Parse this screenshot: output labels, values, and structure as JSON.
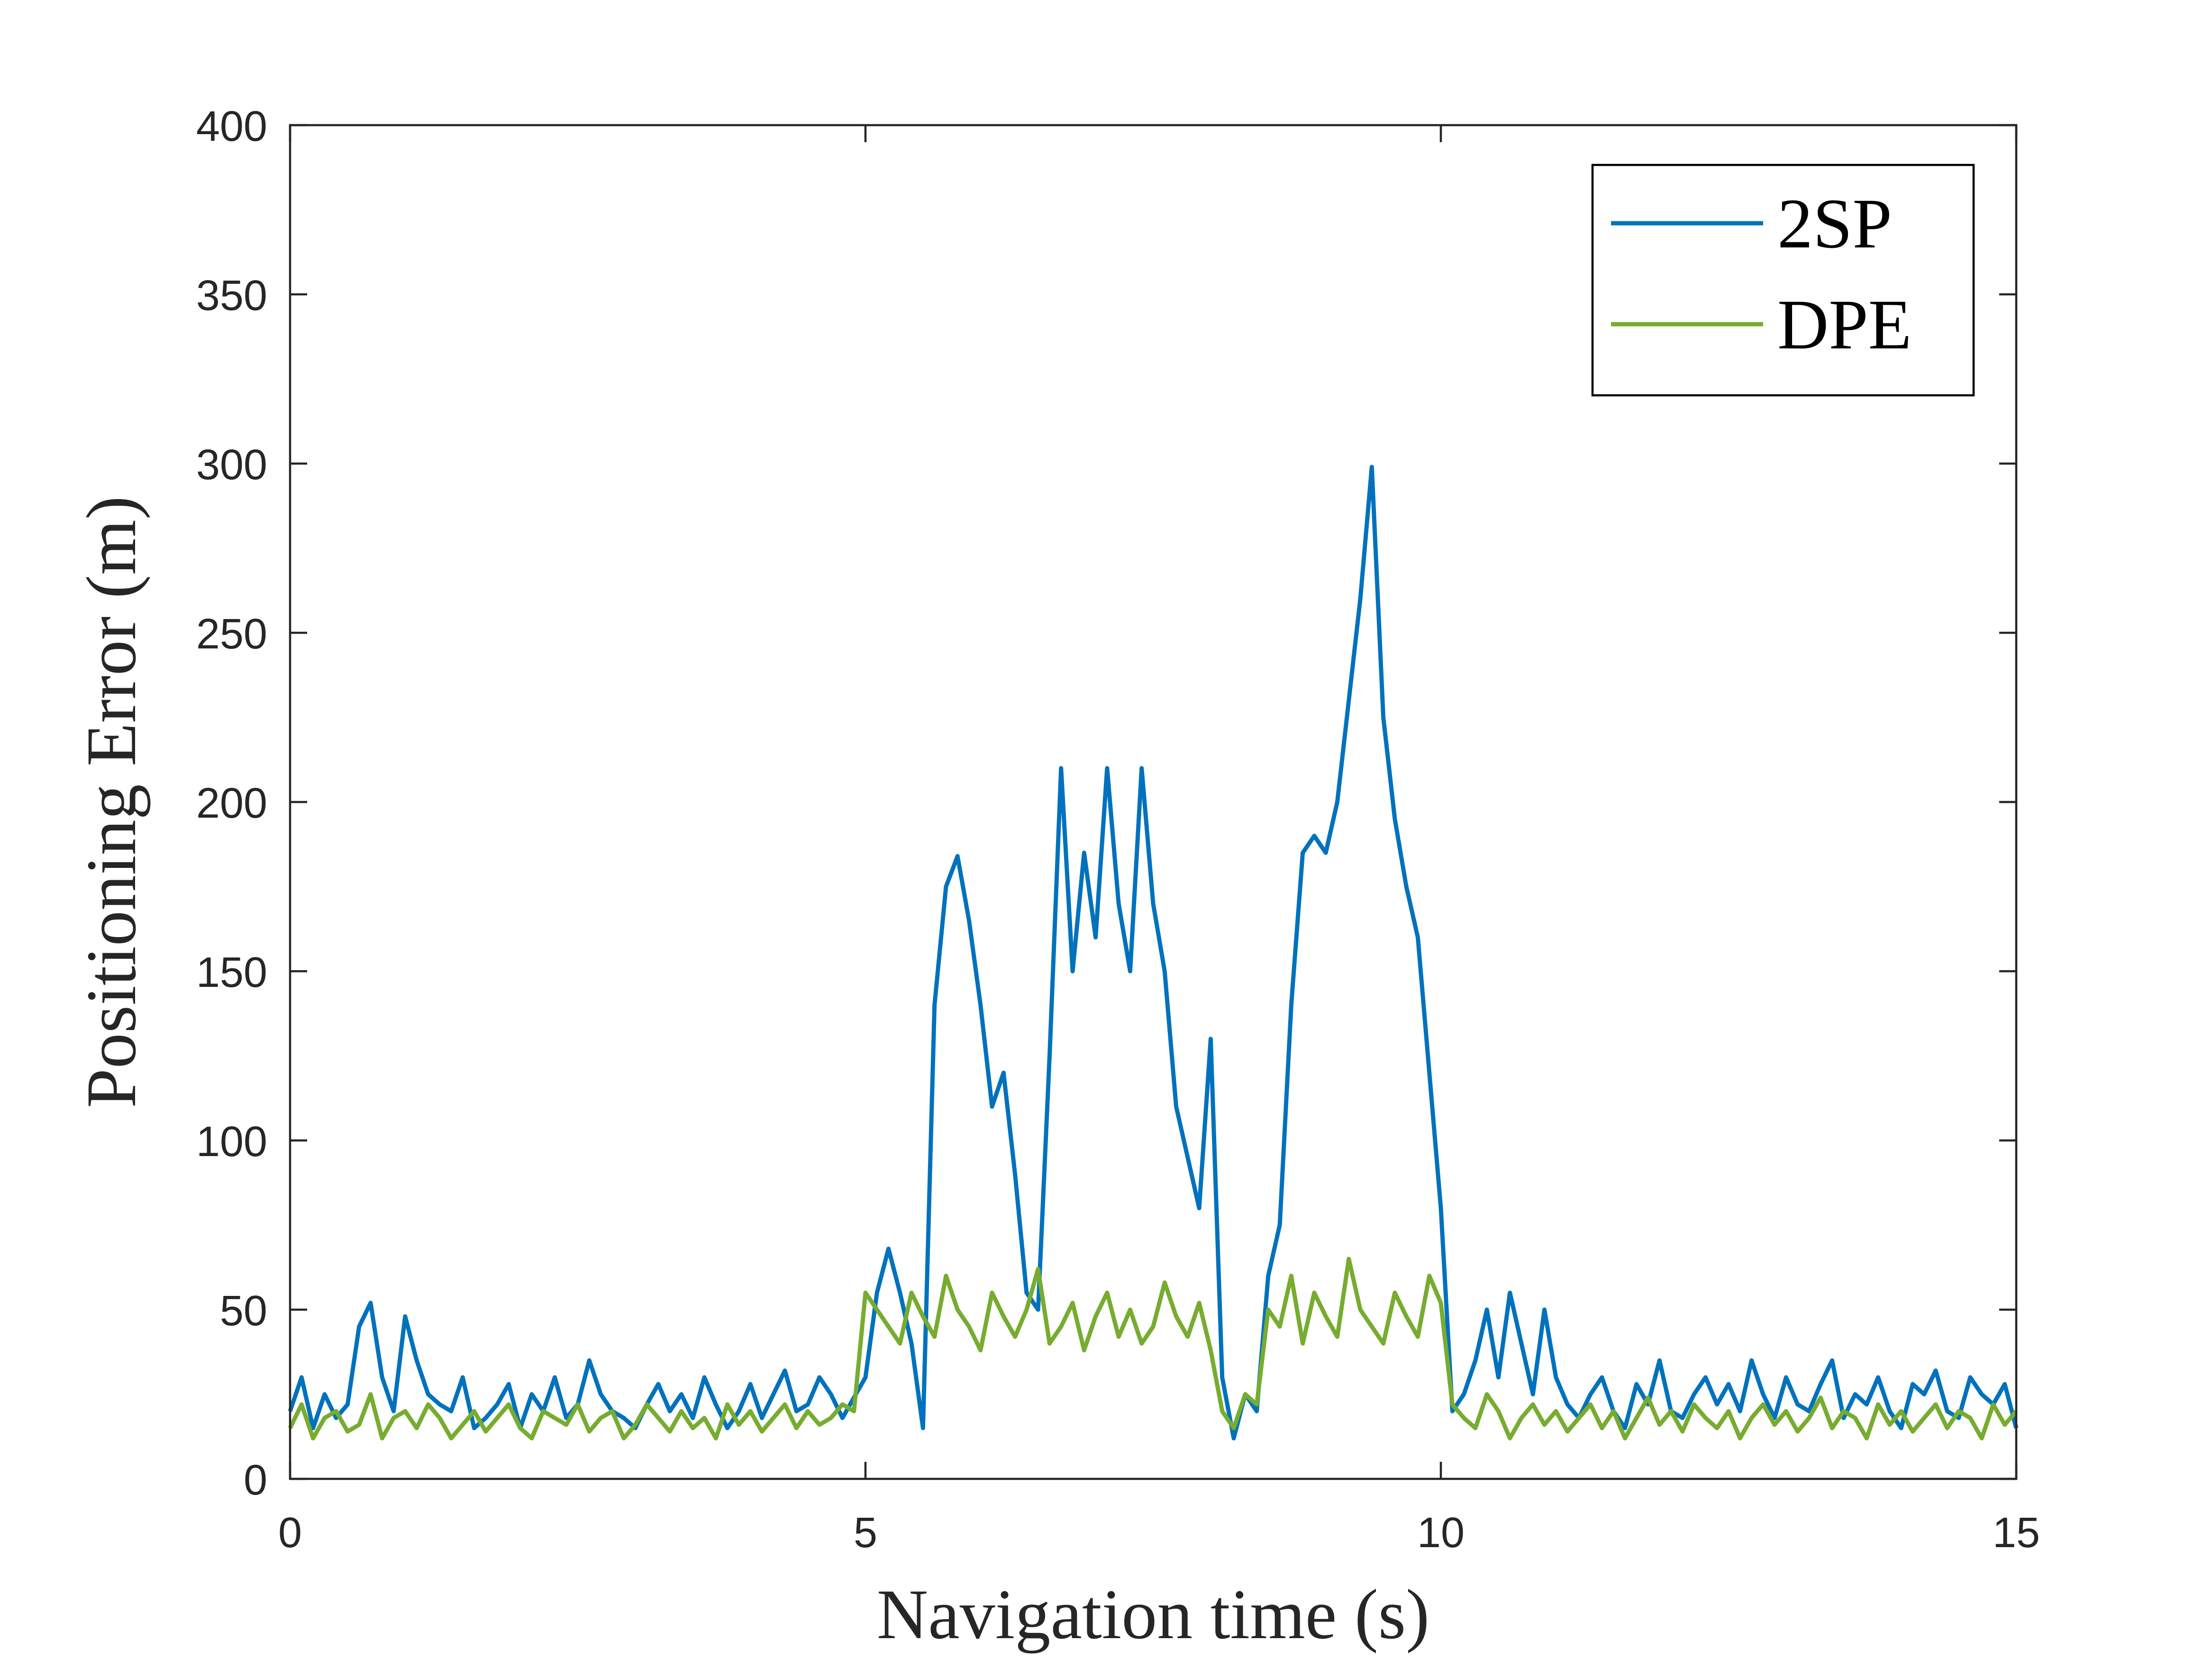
{
  "chart_data": {
    "type": "line",
    "x_label": "Navigation time (s)",
    "y_label": "Positioning Error (m)",
    "x": [
      0,
      0.1,
      0.2,
      0.3,
      0.4,
      0.5,
      0.6,
      0.7,
      0.8,
      0.9,
      1,
      1.1,
      1.2,
      1.3,
      1.4,
      1.5,
      1.6,
      1.7,
      1.8,
      1.9,
      2,
      2.1,
      2.2,
      2.3,
      2.4,
      2.5,
      2.6,
      2.7,
      2.8,
      2.9,
      3,
      3.1,
      3.2,
      3.3,
      3.4,
      3.5,
      3.6,
      3.7,
      3.8,
      3.9,
      4,
      4.1,
      4.2,
      4.3,
      4.4,
      4.5,
      4.6,
      4.7,
      4.8,
      4.9,
      5,
      5.1,
      5.2,
      5.3,
      5.4,
      5.5,
      5.6,
      5.7,
      5.8,
      5.9,
      6,
      6.1,
      6.2,
      6.3,
      6.4,
      6.5,
      6.6,
      6.7,
      6.8,
      6.9,
      7,
      7.1,
      7.2,
      7.3,
      7.4,
      7.5,
      7.6,
      7.7,
      7.8,
      7.9,
      8,
      8.1,
      8.2,
      8.3,
      8.4,
      8.5,
      8.6,
      8.7,
      8.8,
      8.9,
      9,
      9.1,
      9.2,
      9.3,
      9.4,
      9.5,
      9.6,
      9.7,
      9.8,
      9.9,
      10,
      10.1,
      10.2,
      10.3,
      10.4,
      10.5,
      10.6,
      10.7,
      10.8,
      10.9,
      11,
      11.1,
      11.2,
      11.3,
      11.4,
      11.5,
      11.6,
      11.7,
      11.8,
      11.9,
      12,
      12.1,
      12.2,
      12.3,
      12.4,
      12.5,
      12.6,
      12.7,
      12.8,
      12.9,
      13,
      13.1,
      13.2,
      13.3,
      13.4,
      13.5,
      13.6,
      13.7,
      13.8,
      13.9,
      14,
      14.1,
      14.2,
      14.3,
      14.4,
      14.5,
      14.6,
      14.7,
      14.8,
      14.9,
      15
    ],
    "series": [
      {
        "name": "2SP",
        "color": "#0072bd",
        "values": [
          20,
          30,
          15,
          25,
          18,
          22,
          45,
          52,
          30,
          20,
          48,
          35,
          25,
          22,
          20,
          30,
          15,
          18,
          22,
          28,
          15,
          25,
          20,
          30,
          18,
          22,
          35,
          25,
          20,
          18,
          15,
          22,
          28,
          20,
          25,
          18,
          30,
          22,
          15,
          20,
          28,
          18,
          25,
          32,
          20,
          22,
          30,
          25,
          18,
          24,
          30,
          55,
          68,
          55,
          40,
          15,
          140,
          175,
          184,
          165,
          140,
          110,
          120,
          90,
          55,
          50,
          125,
          210,
          150,
          185,
          160,
          210,
          170,
          150,
          210,
          170,
          150,
          110,
          95,
          80,
          130,
          30,
          12,
          25,
          20,
          60,
          75,
          140,
          185,
          190,
          185,
          200,
          230,
          260,
          299,
          225,
          195,
          175,
          160,
          120,
          80,
          20,
          25,
          35,
          50,
          30,
          55,
          40,
          25,
          50,
          30,
          22,
          18,
          25,
          30,
          20,
          15,
          28,
          22,
          35,
          20,
          18,
          25,
          30,
          22,
          28,
          20,
          35,
          25,
          18,
          30,
          22,
          20,
          28,
          35,
          18,
          25,
          22,
          30,
          20,
          15,
          28,
          25,
          32,
          20,
          18,
          30,
          25,
          22,
          28,
          15
        ]
      },
      {
        "name": "DPE",
        "color": "#77ac30",
        "values": [
          15,
          22,
          12,
          18,
          20,
          14,
          16,
          25,
          12,
          18,
          20,
          15,
          22,
          18,
          12,
          16,
          20,
          14,
          18,
          22,
          15,
          12,
          20,
          18,
          16,
          22,
          14,
          18,
          20,
          12,
          16,
          22,
          18,
          14,
          20,
          15,
          18,
          12,
          22,
          16,
          20,
          14,
          18,
          22,
          15,
          20,
          16,
          18,
          22,
          20,
          55,
          50,
          45,
          40,
          55,
          48,
          42,
          60,
          50,
          45,
          38,
          55,
          48,
          42,
          50,
          62,
          40,
          45,
          52,
          38,
          48,
          55,
          42,
          50,
          40,
          45,
          58,
          48,
          42,
          52,
          38,
          20,
          15,
          25,
          22,
          50,
          45,
          60,
          40,
          55,
          48,
          42,
          65,
          50,
          45,
          40,
          55,
          48,
          42,
          60,
          52,
          22,
          18,
          15,
          25,
          20,
          12,
          18,
          22,
          16,
          20,
          14,
          18,
          22,
          15,
          20,
          12,
          18,
          24,
          16,
          20,
          14,
          22,
          18,
          15,
          20,
          12,
          18,
          22,
          16,
          20,
          14,
          18,
          24,
          15,
          20,
          18,
          12,
          22,
          16,
          20,
          14,
          18,
          22,
          15,
          20,
          18,
          12,
          22,
          16,
          20
        ]
      }
    ],
    "xlim": [
      0,
      15
    ],
    "xticks": [
      0,
      5,
      10,
      15
    ],
    "ylim": [
      0,
      400
    ],
    "yticks": [
      0,
      50,
      100,
      150,
      200,
      250,
      300,
      350,
      400
    ],
    "grid": false,
    "legend": "upper right"
  }
}
